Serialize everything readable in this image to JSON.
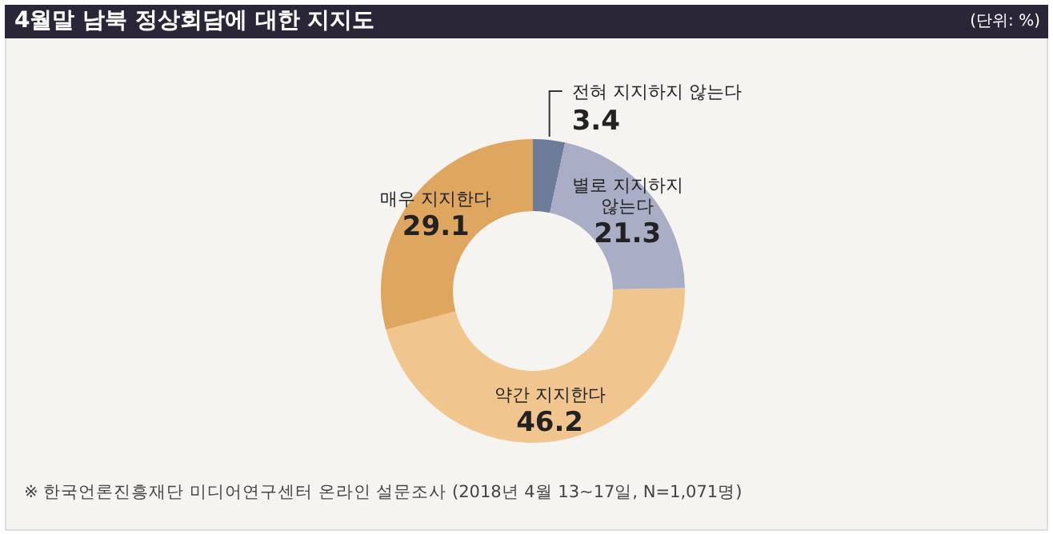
{
  "chart_data": {
    "type": "donut",
    "title": "4월말 남북 정상회담에 대한 지지도",
    "annotations": [
      "(단위: %)",
      "※ 한국언론진흥재단 미디어연구센터 온라인 설문조사 (2018년 4월 13~17일, N=1,071명)"
    ],
    "categories": [
      "전혀 지지하지 않는다",
      "별로 지지하지 않는다",
      "약간 지지한다",
      "매우 지지한다"
    ],
    "values": [
      3.4,
      21.3,
      46.2,
      29.1
    ],
    "colors": [
      "#6e7b99",
      "#a9adc6",
      "#f0c68e",
      "#dfa660"
    ],
    "data_labels": true
  }
}
